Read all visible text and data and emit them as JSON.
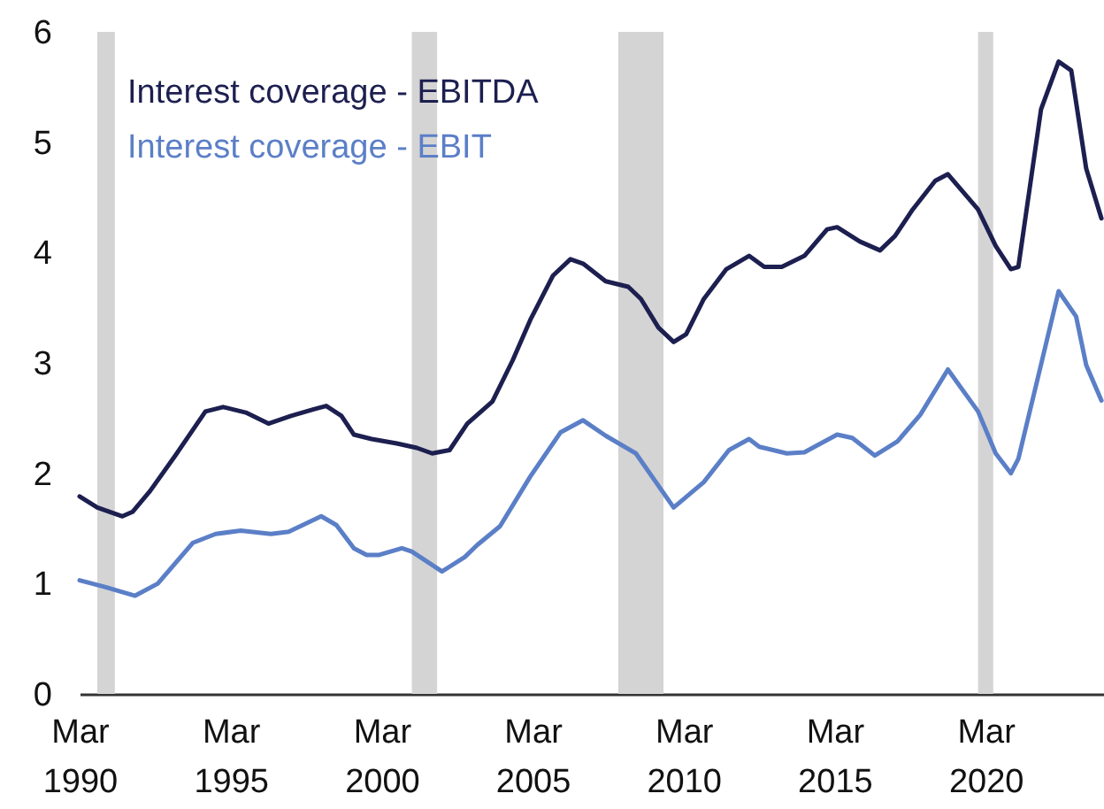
{
  "chart_data": {
    "type": "line",
    "legend": "top left",
    "marker": "none",
    "line_style": "solid",
    "xlim": [
      "1990-03",
      "2024-02"
    ],
    "xticks": [
      {
        "value": "1990-03",
        "label": "Mar 1990"
      },
      {
        "value": "1995-03",
        "label": "Mar 1995"
      },
      {
        "value": "2000-03",
        "label": "Mar 2000"
      },
      {
        "value": "2005-03",
        "label": "Mar 2005"
      },
      {
        "value": "2010-03",
        "label": "Mar 2010"
      },
      {
        "value": "2015-03",
        "label": "Mar 2015"
      },
      {
        "value": "2020-03",
        "label": "Mar 2020"
      }
    ],
    "ylim": [
      0,
      6
    ],
    "yticks": [
      0,
      1,
      2,
      3,
      4,
      5,
      6
    ],
    "bands": [
      {
        "axis": "x",
        "from": "1990-10",
        "to": "1991-05",
        "color": "#d4d4d4"
      },
      {
        "axis": "x",
        "from": "2001-03",
        "to": "2002-01",
        "color": "#d4d4d4"
      },
      {
        "axis": "x",
        "from": "2008-01",
        "to": "2009-07",
        "color": "#d4d4d4"
      },
      {
        "axis": "x",
        "from": "2019-12",
        "to": "2020-06",
        "color": "#d4d4d4"
      }
    ],
    "series": [
      {
        "name": "Interest coverage - EBITDA",
        "color": "#1c1f4f",
        "x": [
          "1990-03",
          "1990-10",
          "1991-03",
          "1991-08",
          "1991-12",
          "1992-07",
          "1993-05",
          "1994-05",
          "1994-12",
          "1995-09",
          "1996-06",
          "1997-03",
          "1997-12",
          "1998-05",
          "1998-11",
          "1999-04",
          "1999-11",
          "2000-09",
          "2001-05",
          "2001-11",
          "2002-06",
          "2003-01",
          "2003-11",
          "2004-07",
          "2005-02",
          "2005-11",
          "2006-06",
          "2006-11",
          "2007-08",
          "2008-05",
          "2008-10",
          "2009-05",
          "2009-11",
          "2010-04",
          "2010-11",
          "2011-08",
          "2012-05",
          "2012-11",
          "2013-06",
          "2014-03",
          "2014-12",
          "2015-04",
          "2016-01",
          "2016-09",
          "2017-03",
          "2017-10",
          "2018-07",
          "2018-12",
          "2019-12",
          "2020-07",
          "2021-01",
          "2021-04",
          "2022-01",
          "2022-08",
          "2023-01",
          "2023-07",
          "2024-01"
        ],
        "values": [
          1.79,
          1.69,
          1.65,
          1.61,
          1.65,
          1.84,
          2.16,
          2.56,
          2.6,
          2.55,
          2.45,
          2.52,
          2.58,
          2.61,
          2.52,
          2.35,
          2.31,
          2.27,
          2.23,
          2.18,
          2.21,
          2.45,
          2.65,
          3.02,
          3.39,
          3.79,
          3.94,
          3.9,
          3.74,
          3.69,
          3.58,
          3.32,
          3.19,
          3.26,
          3.58,
          3.85,
          3.97,
          3.87,
          3.87,
          3.97,
          4.21,
          4.23,
          4.1,
          4.02,
          4.15,
          4.39,
          4.65,
          4.71,
          4.39,
          4.06,
          3.85,
          3.87,
          5.3,
          5.73,
          5.65,
          4.76,
          4.31
        ]
      },
      {
        "name": "Interest coverage - EBIT",
        "color": "#5b7fc7",
        "x": [
          "1990-03",
          "1991-01",
          "1992-01",
          "1992-10",
          "1993-12",
          "1994-09",
          "1995-07",
          "1996-07",
          "1997-02",
          "1998-03",
          "1998-09",
          "1999-04",
          "1999-09",
          "2000-02",
          "2000-11",
          "2001-03",
          "2002-03",
          "2002-12",
          "2003-05",
          "2004-02",
          "2005-02",
          "2006-02",
          "2006-11",
          "2007-08",
          "2008-08",
          "2009-11",
          "2010-11",
          "2011-09",
          "2012-05",
          "2012-09",
          "2013-08",
          "2014-03",
          "2015-04",
          "2015-10",
          "2016-07",
          "2017-04",
          "2018-01",
          "2018-12",
          "2019-12",
          "2020-07",
          "2021-01",
          "2021-04",
          "2021-12",
          "2022-08",
          "2023-03",
          "2023-07",
          "2024-01"
        ],
        "values": [
          1.03,
          0.97,
          0.89,
          1.0,
          1.37,
          1.45,
          1.48,
          1.45,
          1.47,
          1.61,
          1.53,
          1.32,
          1.26,
          1.26,
          1.32,
          1.29,
          1.11,
          1.24,
          1.35,
          1.52,
          1.97,
          2.37,
          2.48,
          2.34,
          2.18,
          1.69,
          1.92,
          2.21,
          2.31,
          2.24,
          2.18,
          2.19,
          2.35,
          2.32,
          2.16,
          2.29,
          2.53,
          2.94,
          2.56,
          2.18,
          2.0,
          2.13,
          2.89,
          3.65,
          3.42,
          2.98,
          2.66
        ]
      }
    ]
  }
}
